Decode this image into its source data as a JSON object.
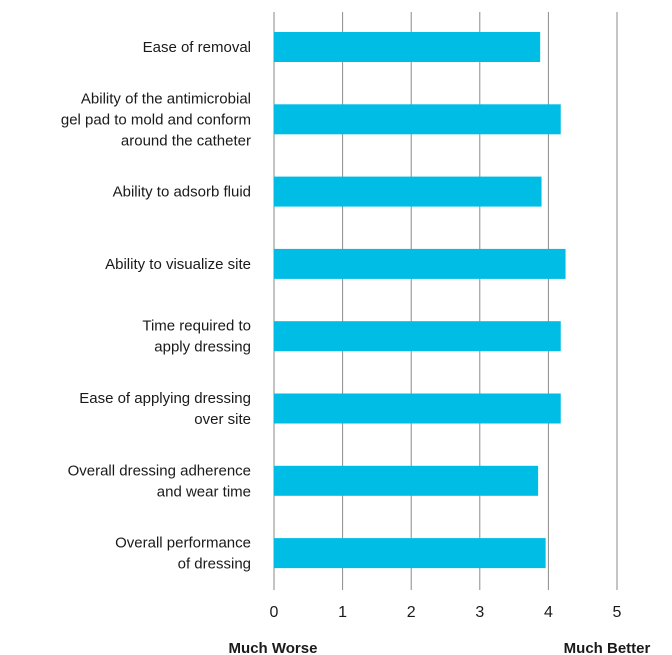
{
  "chart_data": {
    "type": "bar",
    "orientation": "horizontal",
    "categories": [
      [
        "Ease of removal"
      ],
      [
        "Ability of the antimicrobial",
        "gel pad to mold and conform",
        "around the catheter"
      ],
      [
        "Ability to adsorb fluid"
      ],
      [
        "Ability to visualize site"
      ],
      [
        "Time required to",
        "apply dressing"
      ],
      [
        "Ease of applying dressing",
        "over site"
      ],
      [
        "Overall dressing adherence",
        "and wear time"
      ],
      [
        "Overall performance",
        "of dressing"
      ]
    ],
    "values": [
      3.88,
      4.18,
      3.9,
      4.25,
      4.18,
      4.18,
      3.85,
      3.96
    ],
    "xlim": [
      0,
      5
    ],
    "xticks": [
      "0",
      "1",
      "2",
      "3",
      "4",
      "5"
    ],
    "grid": "vertical",
    "bar_color": "#00bde6",
    "grid_color": "#8a8a8a",
    "scale_anchors": {
      "low": "Much Worse",
      "high": "Much Better"
    },
    "title": "",
    "xlabel": "",
    "ylabel": ""
  }
}
